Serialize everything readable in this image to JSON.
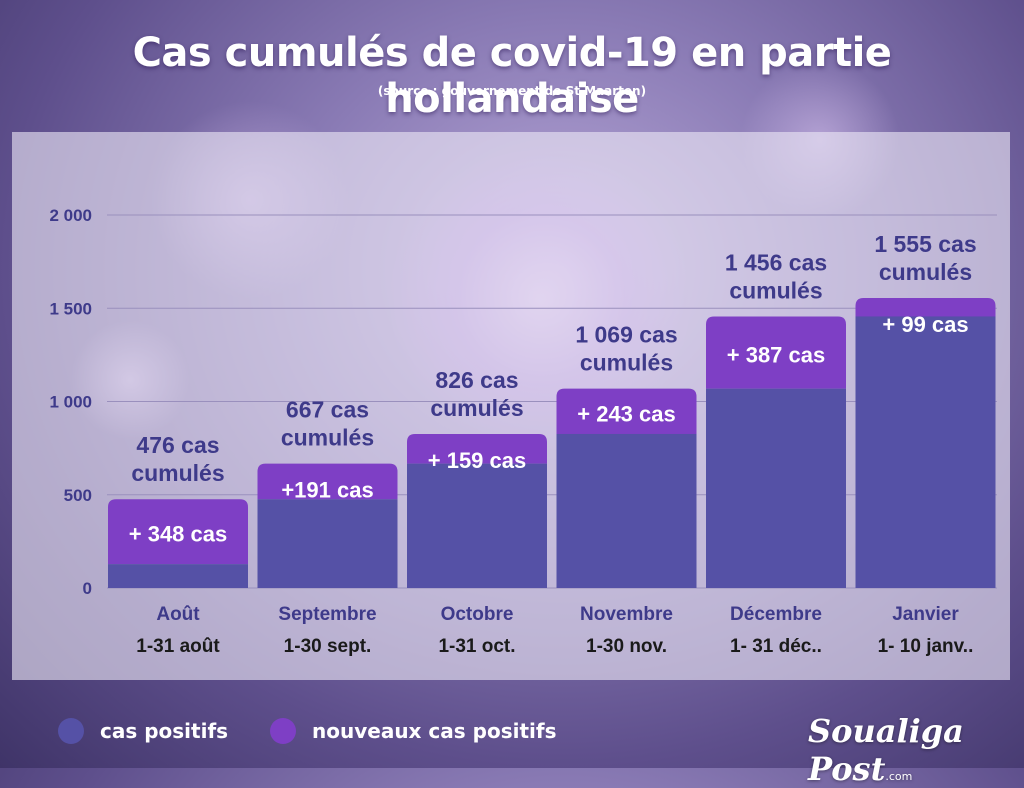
{
  "title": "Cas cumulés de covid-19 en partie hollandaise",
  "subtitle": "(source : gouvernement de St Maarten)",
  "brand": {
    "name": "Soualiga Post",
    "suffix": ".com"
  },
  "colors": {
    "cas_positifs": "#5551a6",
    "nouveaux_cas_positifs": "#7e3fc5",
    "label_text": "#3e3a8a",
    "axis_text": "#3e3a8a",
    "gridline": "#9a90bd"
  },
  "legend": [
    {
      "label": "cas positifs",
      "color": "#5551a6"
    },
    {
      "label": "nouveaux cas positifs",
      "color": "#7e3fc5"
    }
  ],
  "chart_data": {
    "type": "bar",
    "stacked": true,
    "categories": [
      "Août",
      "Septembre",
      "Octobre",
      "Novembre",
      "Décembre",
      "Janvier"
    ],
    "date_ranges": [
      "1-31 août",
      "1-30 sept.",
      "1-31 oct.",
      "1-30 nov.",
      "1- 31 déc..",
      "1- 10 janv.."
    ],
    "series": [
      {
        "name": "cas positifs",
        "values": [
          128,
          476,
          667,
          826,
          1069,
          1456
        ]
      },
      {
        "name": "nouveaux cas positifs",
        "values": [
          348,
          191,
          159,
          243,
          387,
          99
        ]
      }
    ],
    "totals": [
      476,
      667,
      826,
      1069,
      1456,
      1555
    ],
    "new_case_labels": [
      "+ 348 cas",
      "+191 cas",
      "+ 159 cas",
      "+ 243 cas",
      "+ 387 cas",
      "+ 99 cas"
    ],
    "total_labels": [
      [
        "476 cas",
        "cumulés"
      ],
      [
        "667 cas",
        "cumulés"
      ],
      [
        "826 cas",
        "cumulés"
      ],
      [
        "1 069 cas",
        "cumulés"
      ],
      [
        "1 456 cas",
        "cumulés"
      ],
      [
        "1 555 cas",
        "cumulés"
      ]
    ],
    "yticks": [
      "0",
      "500",
      "1 000",
      "1 500",
      "2 000"
    ],
    "ytick_values": [
      0,
      500,
      1000,
      1500,
      2000
    ],
    "ylim": [
      0,
      2000
    ],
    "grid": true,
    "legend_position": "bottom-left"
  }
}
